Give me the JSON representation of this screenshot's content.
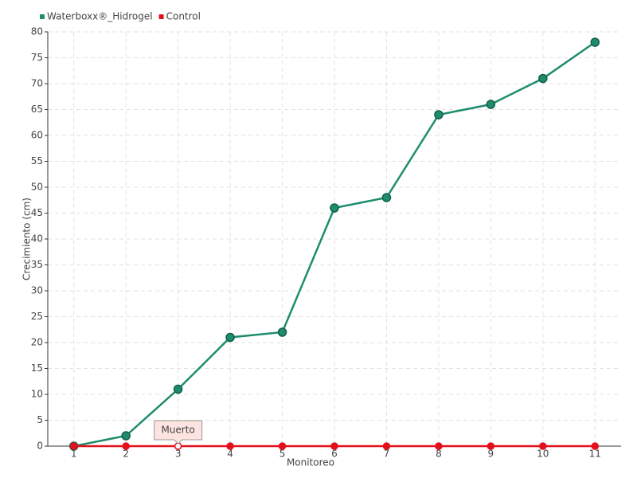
{
  "chart_data": {
    "type": "line",
    "x_label": "Monitoreo",
    "y_label": "Crecimiento (cm)",
    "categories": [
      "1",
      "2",
      "3",
      "4",
      "5",
      "6",
      "7",
      "8",
      "9",
      "10",
      "11"
    ],
    "series": [
      {
        "name": "Waterboxx®_Hidrogel",
        "color": "#1e8c6e",
        "values": [
          0,
          2,
          11,
          21,
          22,
          46,
          48,
          64,
          66,
          71,
          78
        ]
      },
      {
        "name": "Control",
        "color": "#e3101c",
        "values": [
          0,
          0,
          0,
          0,
          0,
          0,
          0,
          0,
          0,
          0,
          0
        ]
      }
    ],
    "annotations": [
      {
        "text": "Muerto",
        "series": "Control",
        "category": "3"
      }
    ],
    "ylim": [
      0,
      80
    ],
    "yticks": [
      0,
      5,
      10,
      15,
      20,
      25,
      30,
      35,
      40,
      45,
      50,
      55,
      60,
      65,
      70,
      75,
      80
    ],
    "grid": true,
    "legend": "top-left"
  }
}
